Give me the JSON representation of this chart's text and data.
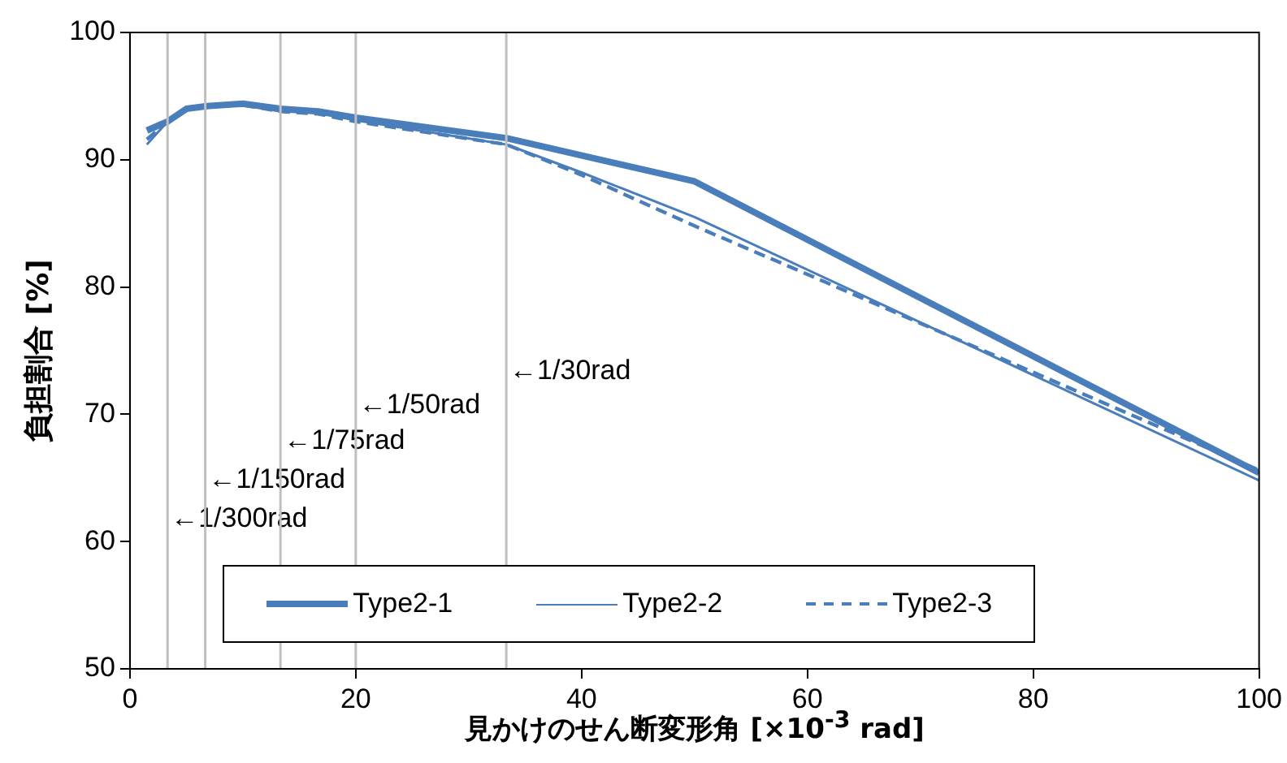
{
  "chart_data": {
    "type": "line",
    "xlabel": "見かけのせん断変形角 [×10$^{-3}$ rad]",
    "ylabel": "負担割合 [%]",
    "xlim": [
      0,
      100
    ],
    "xticks": [
      0,
      20,
      40,
      60,
      80,
      100
    ],
    "ylim": [
      50,
      100
    ],
    "yticks": [
      50,
      60,
      70,
      80,
      90,
      100
    ],
    "grid": false,
    "legend": "bottom",
    "marker": "none",
    "series": [
      {
        "name": "Type2-1",
        "color": "#4a7ebb",
        "line_style": "solid",
        "x": [
          1.5,
          3.33,
          5,
          6.67,
          10,
          13.33,
          16.67,
          20,
          33.33,
          50,
          100
        ],
        "values": [
          92.3,
          93,
          94,
          94.2,
          94.4,
          94,
          93.8,
          93.3,
          91.7,
          88.3,
          65.4
        ]
      },
      {
        "name": "Type2-2",
        "color": "#4a7ebb",
        "line_style": "solid",
        "x": [
          1.5,
          3.33,
          5,
          6.67,
          10,
          13.33,
          16.67,
          20,
          33.33,
          40,
          50,
          100
        ],
        "values": [
          91.2,
          93,
          94,
          94.2,
          94.3,
          93.8,
          93.7,
          93.1,
          91.2,
          89,
          85.5,
          64.8
        ]
      },
      {
        "name": "Type2-3",
        "color": "#4a7ebb",
        "line_style": "dashed",
        "x": [
          1.5,
          3.33,
          5,
          6.67,
          10,
          13.33,
          16.67,
          20,
          33.33,
          40,
          50,
          60,
          100
        ],
        "values": [
          91.6,
          93,
          94,
          94.2,
          94.3,
          93.8,
          93.6,
          93,
          91.2,
          88.8,
          84.8,
          81,
          65.6
        ]
      }
    ],
    "ref_lines": [
      {
        "axis": "x",
        "value": 3.33,
        "label": "←1/300rad",
        "color": "#bfbfbf"
      },
      {
        "axis": "x",
        "value": 6.67,
        "label": "←1/150rad",
        "color": "#bfbfbf"
      },
      {
        "axis": "x",
        "value": 13.33,
        "label": "←1/75rad",
        "color": "#bfbfbf"
      },
      {
        "axis": "x",
        "value": 20,
        "label": "←1/50rad",
        "color": "#bfbfbf"
      },
      {
        "axis": "x",
        "value": 33.33,
        "label": "←1/30rad",
        "color": "#bfbfbf"
      }
    ]
  }
}
